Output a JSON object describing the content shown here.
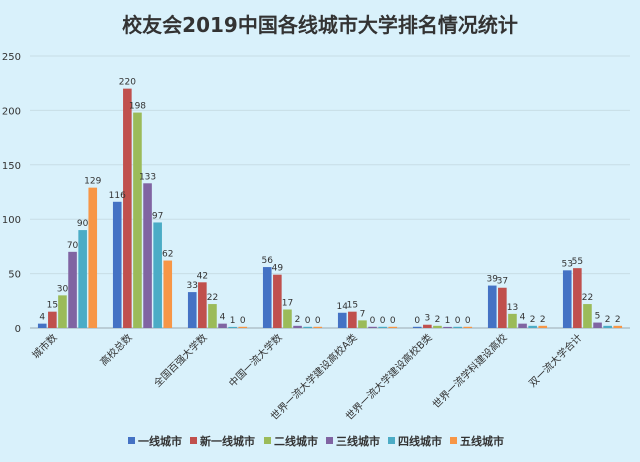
{
  "chart_data": {
    "type": "bar",
    "title": "校友会2019中国各线城市大学排名情况统计",
    "categories": [
      "城市数",
      "高校总数",
      "全国百强大学数",
      "中国一流大学数",
      "世界一流大学建设高校A类",
      "世界一流大学建设高校B类",
      "世界一流学科建设高校",
      "双一流大学合计"
    ],
    "series": [
      {
        "name": "一线城市",
        "color": "#4472c4",
        "values": [
          4,
          116,
          33,
          56,
          14,
          0,
          39,
          53
        ]
      },
      {
        "name": "新一线城市",
        "color": "#c0504d",
        "values": [
          15,
          220,
          42,
          49,
          15,
          3,
          37,
          55
        ]
      },
      {
        "name": "二线城市",
        "color": "#9bbb59",
        "values": [
          30,
          198,
          22,
          17,
          7,
          2,
          13,
          22
        ]
      },
      {
        "name": "三线城市",
        "color": "#8064a2",
        "values": [
          70,
          133,
          4,
          2,
          0,
          1,
          4,
          5
        ]
      },
      {
        "name": "四线城市",
        "color": "#4bacc6",
        "values": [
          90,
          97,
          1,
          0,
          0,
          0,
          2,
          2
        ]
      },
      {
        "name": "五线城市",
        "color": "#f79646",
        "values": [
          129,
          62,
          0,
          0,
          0,
          0,
          2,
          2
        ]
      }
    ],
    "ylim": [
      0,
      250
    ],
    "yticks": [
      0,
      50,
      100,
      150,
      200,
      250
    ],
    "grid": true,
    "legend": "bottom"
  }
}
